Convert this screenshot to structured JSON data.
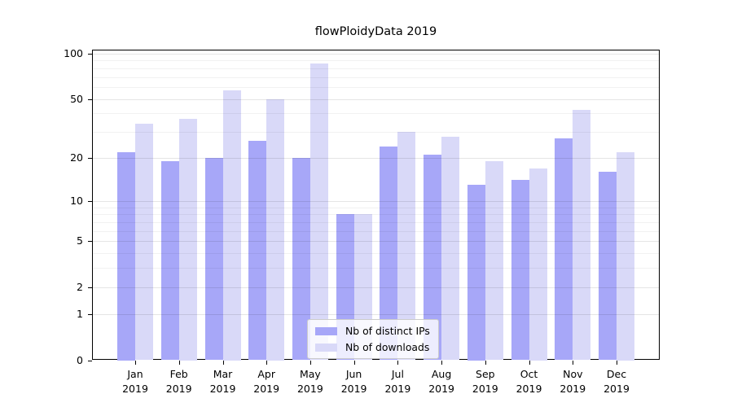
{
  "chart_data": {
    "type": "bar",
    "title": "flowPloidyData 2019",
    "categories": [
      "Jan",
      "Feb",
      "Mar",
      "Apr",
      "May",
      "Jun",
      "Jul",
      "Aug",
      "Sep",
      "Oct",
      "Nov",
      "Dec"
    ],
    "category_year": "2019",
    "series": [
      {
        "name": "Nb of distinct IPs",
        "color": "#a7a7f8",
        "values": [
          22,
          19,
          20,
          26,
          20,
          8,
          24,
          21,
          13,
          14,
          27,
          16
        ]
      },
      {
        "name": "Nb of downloads",
        "color": "#d9d9f8",
        "values": [
          34,
          37,
          57,
          50,
          86,
          8,
          30,
          28,
          19,
          17,
          42,
          22
        ]
      }
    ],
    "xlabel": "",
    "ylabel": "",
    "yscale": "log1p",
    "yticks": [
      0,
      1,
      2,
      5,
      10,
      20,
      50,
      100
    ],
    "minor_gridlines": [
      3,
      4,
      6,
      7,
      8,
      9,
      30,
      40,
      60,
      70,
      80,
      90
    ],
    "ylim": [
      0,
      106
    ],
    "grid": "horizontal",
    "legend_position": "inside-bottom-center",
    "colors": {
      "background": "#ffffff",
      "axis": "#000000",
      "major_grid": "rgba(0,0,0,0.10)",
      "minor_grid": "rgba(0,0,0,0.055)",
      "legend_border": "#cccccc"
    }
  }
}
